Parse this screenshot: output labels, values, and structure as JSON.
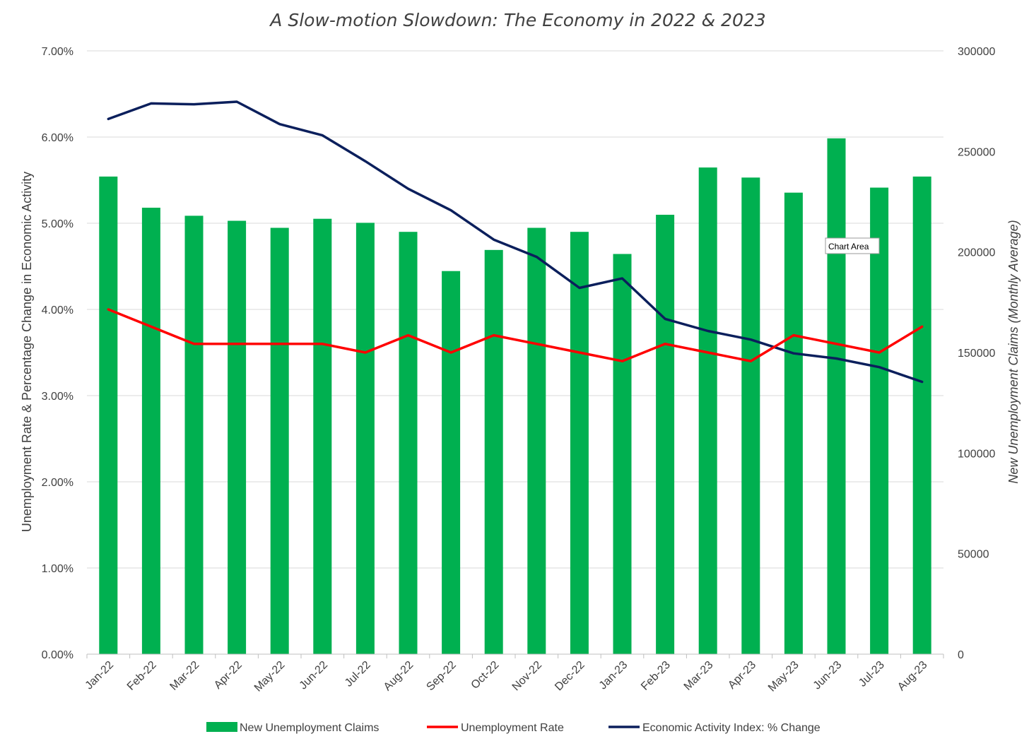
{
  "chart_data": {
    "type": "bar",
    "title": "A Slow-motion Slowdown: The Economy in 2022 & 2023",
    "categories": [
      "Jan-22",
      "Feb-22",
      "Mar-22",
      "Apr-22",
      "May-22",
      "Jun-22",
      "Jul-22",
      "Aug-22",
      "Sep-22",
      "Oct-22",
      "Nov-22",
      "Dec-22",
      "Jan-23",
      "Feb-23",
      "Mar-23",
      "Apr-23",
      "May-23",
      "Jun-23",
      "Jul-23",
      "Aug-23"
    ],
    "ylabel": "Unemployment Rate & Percentage Change in  Economic Activity",
    "y2label": "New Unemployment Claims (Monthly Average)",
    "ylim": [
      0,
      7
    ],
    "yticks": [
      "0.00%",
      "1.00%",
      "2.00%",
      "3.00%",
      "4.00%",
      "5.00%",
      "6.00%",
      "7.00%"
    ],
    "y2lim": [
      0,
      300000
    ],
    "y2ticks": [
      "0",
      "50000",
      "100000",
      "150000",
      "200000",
      "250000",
      "300000"
    ],
    "grid": true,
    "legend_position": "bottom",
    "series": [
      {
        "name": "New Unemployment Claims",
        "type": "bar",
        "axis": "right",
        "color": "#00B050",
        "values": [
          237500,
          222000,
          218000,
          215500,
          212000,
          216500,
          214500,
          210000,
          190500,
          201000,
          212000,
          210000,
          199000,
          218500,
          242000,
          237000,
          229500,
          256500,
          232000,
          237500
        ]
      },
      {
        "name": "Unemployment Rate",
        "type": "line",
        "axis": "left",
        "color": "#FF0000",
        "values": [
          4.0,
          3.8,
          3.6,
          3.6,
          3.6,
          3.6,
          3.5,
          3.7,
          3.5,
          3.7,
          3.6,
          3.5,
          3.4,
          3.6,
          3.5,
          3.4,
          3.7,
          3.6,
          3.5,
          3.8
        ]
      },
      {
        "name": "Economic Activity Index: % Change",
        "type": "line",
        "axis": "left",
        "color": "#0B1F5C",
        "values": [
          6.21,
          6.39,
          6.38,
          6.41,
          6.15,
          6.02,
          5.72,
          5.4,
          5.15,
          4.81,
          4.61,
          4.25,
          4.36,
          3.89,
          3.75,
          3.65,
          3.49,
          3.43,
          3.33,
          3.16
        ]
      }
    ]
  },
  "tooltip": {
    "label": "Chart Area"
  }
}
